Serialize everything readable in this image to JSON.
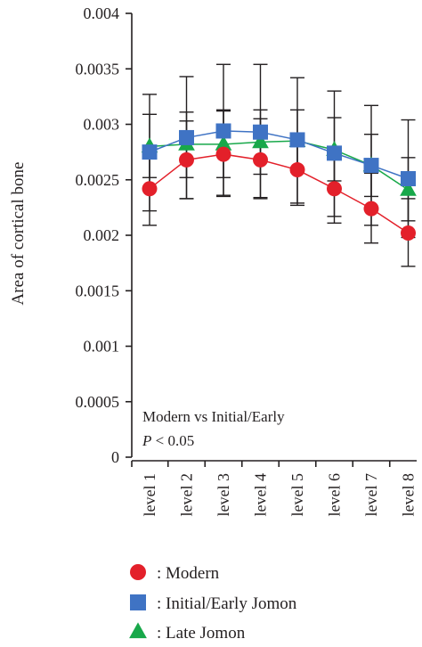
{
  "chart_data": {
    "type": "line",
    "title": "",
    "xlabel": "",
    "ylabel": "Area of cortical bone",
    "ylim": [
      0,
      0.004
    ],
    "yticks": [
      "0",
      "0.0005",
      "0.001",
      "0.0015",
      "0.002",
      "0.0025",
      "0.003",
      "0.0035",
      "0.004"
    ],
    "categories": [
      "level 1",
      "level 2",
      "level 3",
      "level 4",
      "level 5",
      "level 6",
      "level 7",
      "level 8"
    ],
    "grid": false,
    "legend_position": "bottom",
    "annotation": {
      "line1": "Modern vs Initial/Early",
      "line2_italic": "P",
      "line2_rest": " < 0.05"
    },
    "series": [
      {
        "name": ": Modern",
        "marker": "circle",
        "color": "#e3202a",
        "values": [
          0.00242,
          0.00268,
          0.00273,
          0.00268,
          0.00259,
          0.00242,
          0.00224,
          0.00202
        ],
        "err_low": [
          0.00209,
          0.00233,
          0.00236,
          0.00234,
          0.00227,
          0.00211,
          0.00193,
          0.00172
        ],
        "err_high": [
          0.00276,
          0.00303,
          0.00312,
          0.00305,
          0.00292,
          0.00273,
          0.00256,
          0.00233
        ]
      },
      {
        "name": ": Initial/Early Jomon",
        "marker": "square",
        "color": "#3f73c4",
        "values": [
          0.00275,
          0.00288,
          0.00294,
          0.00293,
          0.00286,
          0.00274,
          0.00263,
          0.00251
        ],
        "err_low": [
          0.00222,
          0.00233,
          0.00235,
          0.00233,
          0.00229,
          0.00217,
          0.00209,
          0.00198
        ],
        "err_high": [
          0.00327,
          0.00343,
          0.00354,
          0.00354,
          0.00342,
          0.0033,
          0.00317,
          0.00304
        ]
      },
      {
        "name": ": Late Jomon",
        "marker": "triangle",
        "color": "#18a84a",
        "values": [
          0.0028,
          0.00282,
          0.00282,
          0.00284,
          0.00285,
          0.00277,
          0.00263,
          0.00241
        ],
        "err_low": [
          0.00252,
          0.00252,
          0.00252,
          0.00255,
          0.00257,
          0.00249,
          0.00235,
          0.00213
        ],
        "err_high": [
          0.00309,
          0.00311,
          0.00313,
          0.00313,
          0.00313,
          0.00306,
          0.00291,
          0.0027
        ]
      }
    ]
  }
}
